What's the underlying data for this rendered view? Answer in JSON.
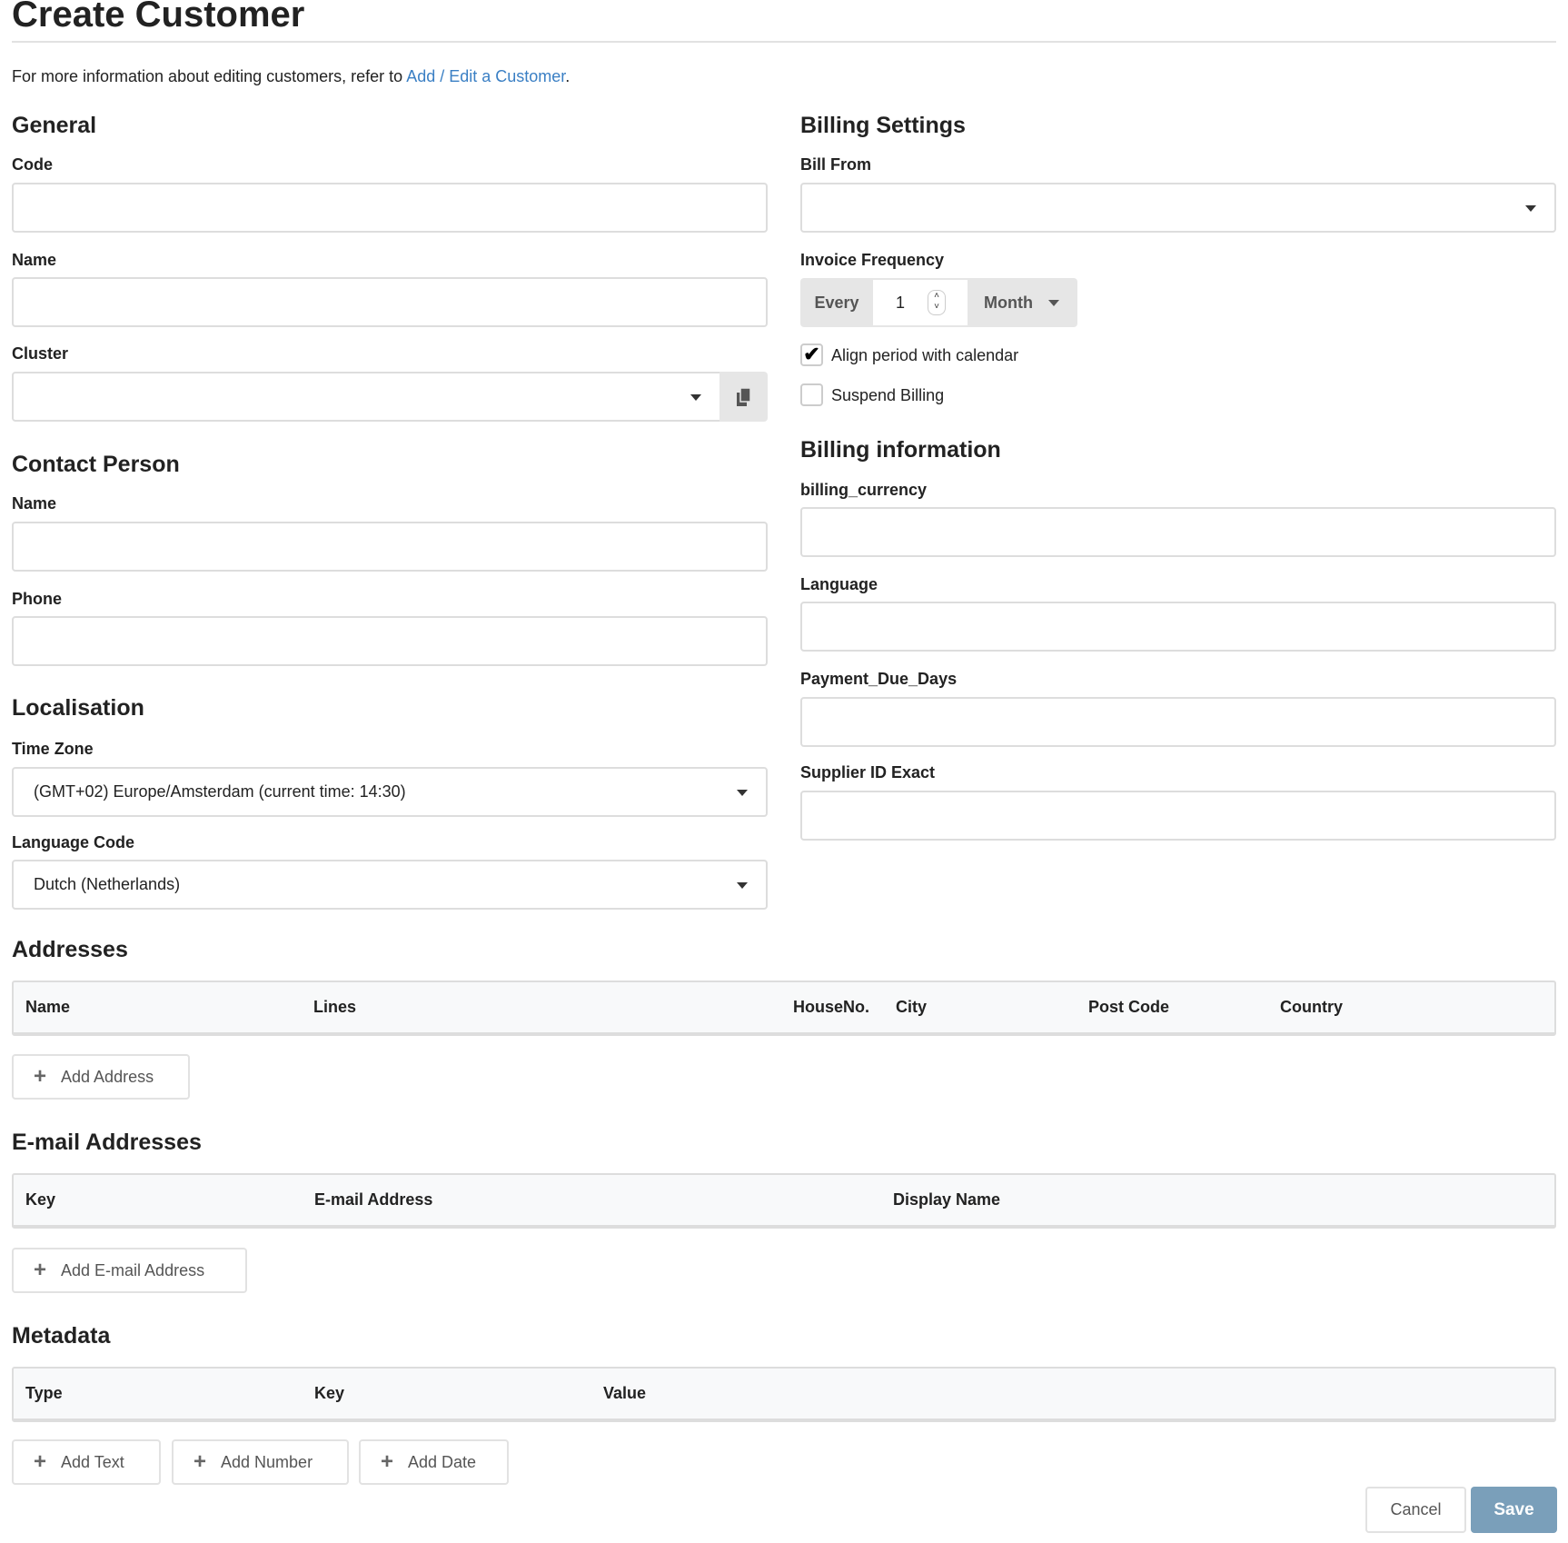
{
  "page_title": "Create Customer",
  "info": {
    "text": "For more information about editing customers, refer to ",
    "link": "Add / Edit a Customer",
    "suffix": "."
  },
  "general": {
    "heading": "General",
    "code_label": "Code",
    "code_value": "",
    "name_label": "Name",
    "name_value": "",
    "cluster_label": "Cluster",
    "cluster_value": "",
    "copy_icon": "copy-icon"
  },
  "contact": {
    "heading": "Contact Person",
    "name_label": "Name",
    "name_value": "",
    "phone_label": "Phone",
    "phone_value": ""
  },
  "localisation": {
    "heading": "Localisation",
    "timezone_label": "Time Zone",
    "timezone_value": "(GMT+02) Europe/Amsterdam (current time: 14:30)",
    "language_label": "Language Code",
    "language_value": "Dutch (Netherlands)"
  },
  "billing_settings": {
    "heading": "Billing Settings",
    "bill_from_label": "Bill From",
    "bill_from_value": "",
    "invoice_frequency_label": "Invoice Frequency",
    "every_label": "Every",
    "frequency_value": "1",
    "period_value": "Month",
    "align_label": "Align period with calendar",
    "align_checked": true,
    "suspend_label": "Suspend Billing",
    "suspend_checked": false
  },
  "billing_info": {
    "heading": "Billing information",
    "currency_label": "billing_currency",
    "language_label": "Language",
    "payment_label": "Payment_Due_Days",
    "supplier_label": "Supplier ID Exact"
  },
  "addresses": {
    "heading": "Addresses",
    "columns": [
      "Name",
      "Lines",
      "HouseNo.",
      "City",
      "Post Code",
      "Country"
    ],
    "add_label": "Add Address"
  },
  "emails": {
    "heading": "E-mail Addresses",
    "columns": [
      "Key",
      "E-mail Address",
      "Display Name"
    ],
    "add_label": "Add E-mail Address"
  },
  "metadata": {
    "heading": "Metadata",
    "columns": [
      "Type",
      "Key",
      "Value"
    ],
    "add_text": "Add Text",
    "add_number": "Add Number",
    "add_date": "Add Date"
  },
  "footer": {
    "cancel": "Cancel",
    "save": "Save",
    "save_color": "#7a9fba"
  }
}
